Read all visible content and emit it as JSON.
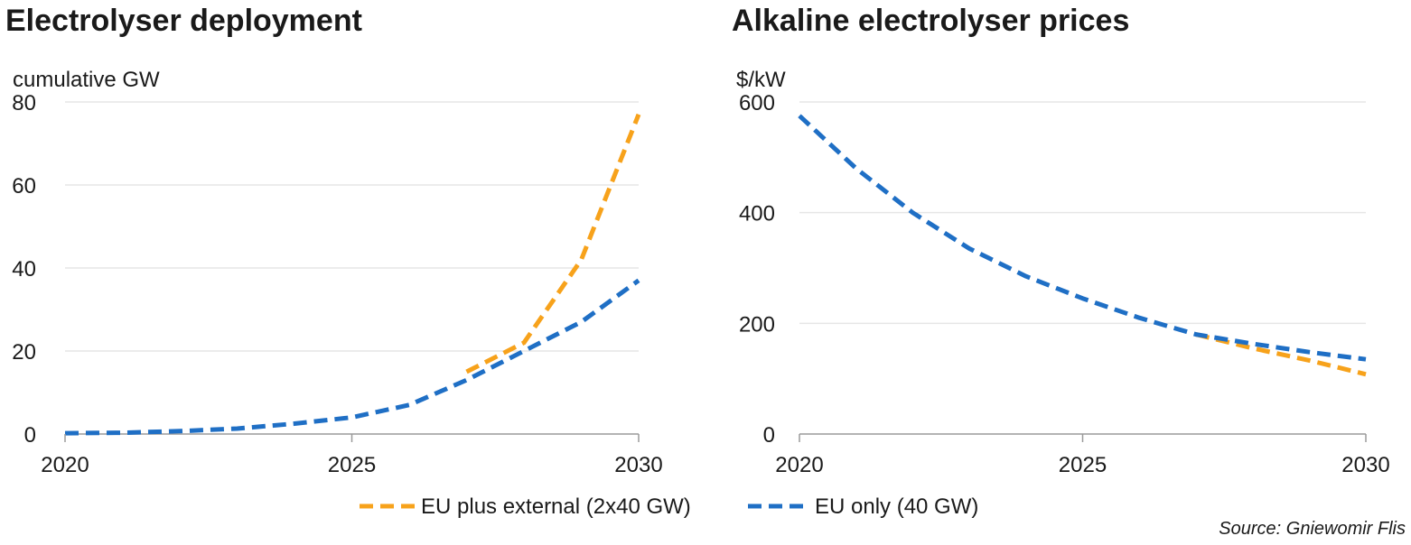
{
  "colors": {
    "orange": "#f7a21b",
    "blue": "#1f6fc5"
  },
  "legend": {
    "items": [
      {
        "label": "EU plus external (2x40 GW)",
        "color": "#f7a21b"
      },
      {
        "label": "EU only (40 GW)",
        "color": "#1f6fc5"
      }
    ]
  },
  "source": "Source: Gniewomir Flis",
  "chart_data": [
    {
      "type": "line",
      "title": "Electrolyser deployment",
      "ylabel": "cumulative GW",
      "xlabel": "",
      "xlim": [
        2020,
        2030
      ],
      "ylim": [
        0,
        80
      ],
      "xticks": [
        2020,
        2025,
        2030
      ],
      "yticks": [
        0,
        20,
        40,
        60,
        80
      ],
      "grid": true,
      "series": [
        {
          "name": "EU plus external (2x40 GW)",
          "color": "#f7a21b",
          "x": [
            2027,
            2028,
            2029,
            2030
          ],
          "y": [
            15,
            22,
            42,
            77
          ]
        },
        {
          "name": "EU only (40 GW)",
          "color": "#1f6fc5",
          "x": [
            2020,
            2021,
            2022,
            2023,
            2024,
            2025,
            2026,
            2027,
            2028,
            2029,
            2030
          ],
          "y": [
            0.2,
            0.3,
            0.7,
            1.3,
            2.5,
            4,
            7,
            13,
            20,
            27,
            37
          ]
        }
      ]
    },
    {
      "type": "line",
      "title": "Alkaline electrolyser prices",
      "ylabel": "$/kW",
      "xlabel": "",
      "xlim": [
        2020,
        2030
      ],
      "ylim": [
        0,
        600
      ],
      "xticks": [
        2020,
        2025,
        2030
      ],
      "yticks": [
        0,
        200,
        400,
        600
      ],
      "grid": true,
      "series": [
        {
          "name": "EU plus external (2x40 GW)",
          "color": "#f7a21b",
          "x": [
            2027,
            2028,
            2029,
            2030
          ],
          "y": [
            180,
            155,
            133,
            108
          ]
        },
        {
          "name": "EU only (40 GW)",
          "color": "#1f6fc5",
          "x": [
            2020,
            2021,
            2022,
            2023,
            2024,
            2025,
            2026,
            2027,
            2028,
            2029,
            2030
          ],
          "y": [
            575,
            480,
            400,
            335,
            285,
            245,
            210,
            180,
            163,
            148,
            135
          ]
        }
      ]
    }
  ]
}
